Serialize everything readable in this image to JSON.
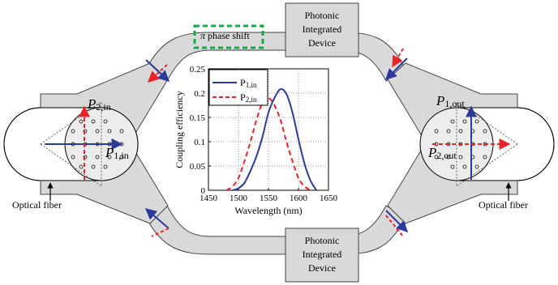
{
  "diagram": {
    "device_top": [
      "Photonic",
      "Integrated",
      "Device"
    ],
    "device_bottom": [
      "Photonic",
      "Integrated",
      "Device"
    ],
    "phase_shift_symbol": "π",
    "phase_shift_label": " phase shift",
    "left_fiber_label": "Optical fiber",
    "right_fiber_label": "Optical fiber",
    "left_p2_main": "P",
    "left_p2_sub": "2,in",
    "left_p1_main": "P",
    "left_p1_sub": "1,in",
    "right_p1_main": "P",
    "right_p1_sub": "1,out",
    "right_p2_main": "P",
    "right_p2_sub": "2,out",
    "colors": {
      "blue": "#2b3a9b",
      "red": "#e8232a",
      "gray": "#d9d9d9",
      "green": "#19a84a"
    }
  },
  "chart_data": {
    "type": "line",
    "xlabel": "Wavelength (nm)",
    "ylabel": "Coupling efficiency",
    "xlim": [
      1450,
      1650
    ],
    "ylim": [
      0,
      0.25
    ],
    "xticks": [
      1450,
      1500,
      1550,
      1600,
      1650
    ],
    "yticks": [
      0,
      0.05,
      0.1,
      0.15,
      0.2,
      0.25
    ],
    "grid": true,
    "legend": "top-left",
    "series": [
      {
        "name_main": "P",
        "name_sub": "1,in",
        "color": "#2b3a9b",
        "dash": "solid",
        "x": [
          1490,
          1500,
          1510,
          1520,
          1530,
          1540,
          1550,
          1560,
          1570,
          1580,
          1590,
          1600,
          1610,
          1620,
          1630
        ],
        "y": [
          0.0,
          0.004,
          0.015,
          0.04,
          0.07,
          0.11,
          0.16,
          0.19,
          0.208,
          0.198,
          0.16,
          0.105,
          0.055,
          0.02,
          0.0
        ]
      },
      {
        "name_main": "P",
        "name_sub": "2,in",
        "color": "#e8232a",
        "dash": "dashed",
        "x": [
          1480,
          1490,
          1500,
          1510,
          1520,
          1530,
          1540,
          1550,
          1560,
          1570,
          1580,
          1590,
          1600,
          1610,
          1620
        ],
        "y": [
          0.0,
          0.008,
          0.025,
          0.06,
          0.1,
          0.145,
          0.18,
          0.19,
          0.175,
          0.145,
          0.1,
          0.06,
          0.025,
          0.008,
          0.0
        ]
      }
    ]
  }
}
